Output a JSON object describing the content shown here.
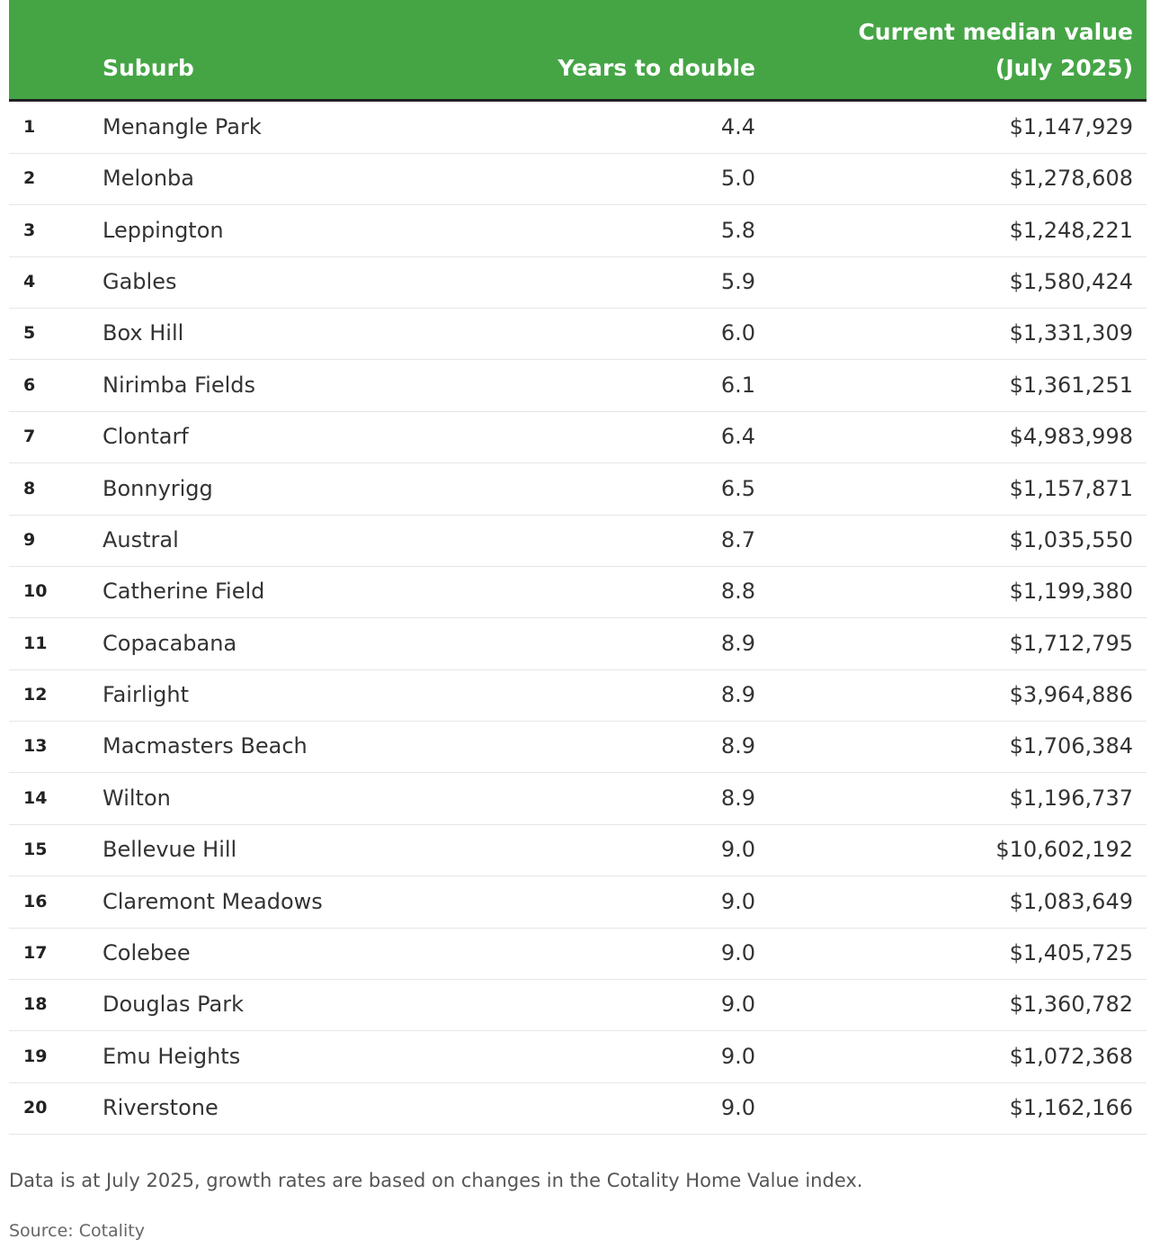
{
  "table": {
    "header": [
      "",
      "Suburb",
      "Years to double",
      "Current median value (July 2025)"
    ],
    "rows": [
      [
        "1",
        "Menangle Park",
        "4.4",
        "$1,147,929"
      ],
      [
        "2",
        "Melonba",
        "5.0",
        "$1,278,608"
      ],
      [
        "3",
        "Leppington",
        "5.8",
        "$1,248,221"
      ],
      [
        "4",
        "Gables",
        "5.9",
        "$1,580,424"
      ],
      [
        "5",
        "Box Hill",
        "6.0",
        "$1,331,309"
      ],
      [
        "6",
        "Nirimba Fields",
        "6.1",
        "$1,361,251"
      ],
      [
        "7",
        "Clontarf",
        "6.4",
        "$4,983,998"
      ],
      [
        "8",
        "Bonnyrigg",
        "6.5",
        "$1,157,871"
      ],
      [
        "9",
        "Austral",
        "8.7",
        "$1,035,550"
      ],
      [
        "10",
        "Catherine Field",
        "8.8",
        "$1,199,380"
      ],
      [
        "11",
        "Copacabana",
        "8.9",
        "$1,712,795"
      ],
      [
        "12",
        "Fairlight",
        "8.9",
        "$3,964,886"
      ],
      [
        "13",
        "Macmasters Beach",
        "8.9",
        "$1,706,384"
      ],
      [
        "14",
        "Wilton",
        "8.9",
        "$1,196,737"
      ],
      [
        "15",
        "Bellevue Hill",
        "9.0",
        "$10,602,192"
      ],
      [
        "16",
        "Claremont Meadows",
        "9.0",
        "$1,083,649"
      ],
      [
        "17",
        "Colebee",
        "9.0",
        "$1,405,725"
      ],
      [
        "18",
        "Douglas Park",
        "9.0",
        "$1,360,782"
      ],
      [
        "19",
        "Emu Heights",
        "9.0",
        "$1,072,368"
      ],
      [
        "20",
        "Riverstone",
        "9.0",
        "$1,162,166"
      ]
    ]
  },
  "footnote": "Data is at July 2025, growth rates are based on changes in the Cotality Home Value index.",
  "source": "Source: Cotality"
}
